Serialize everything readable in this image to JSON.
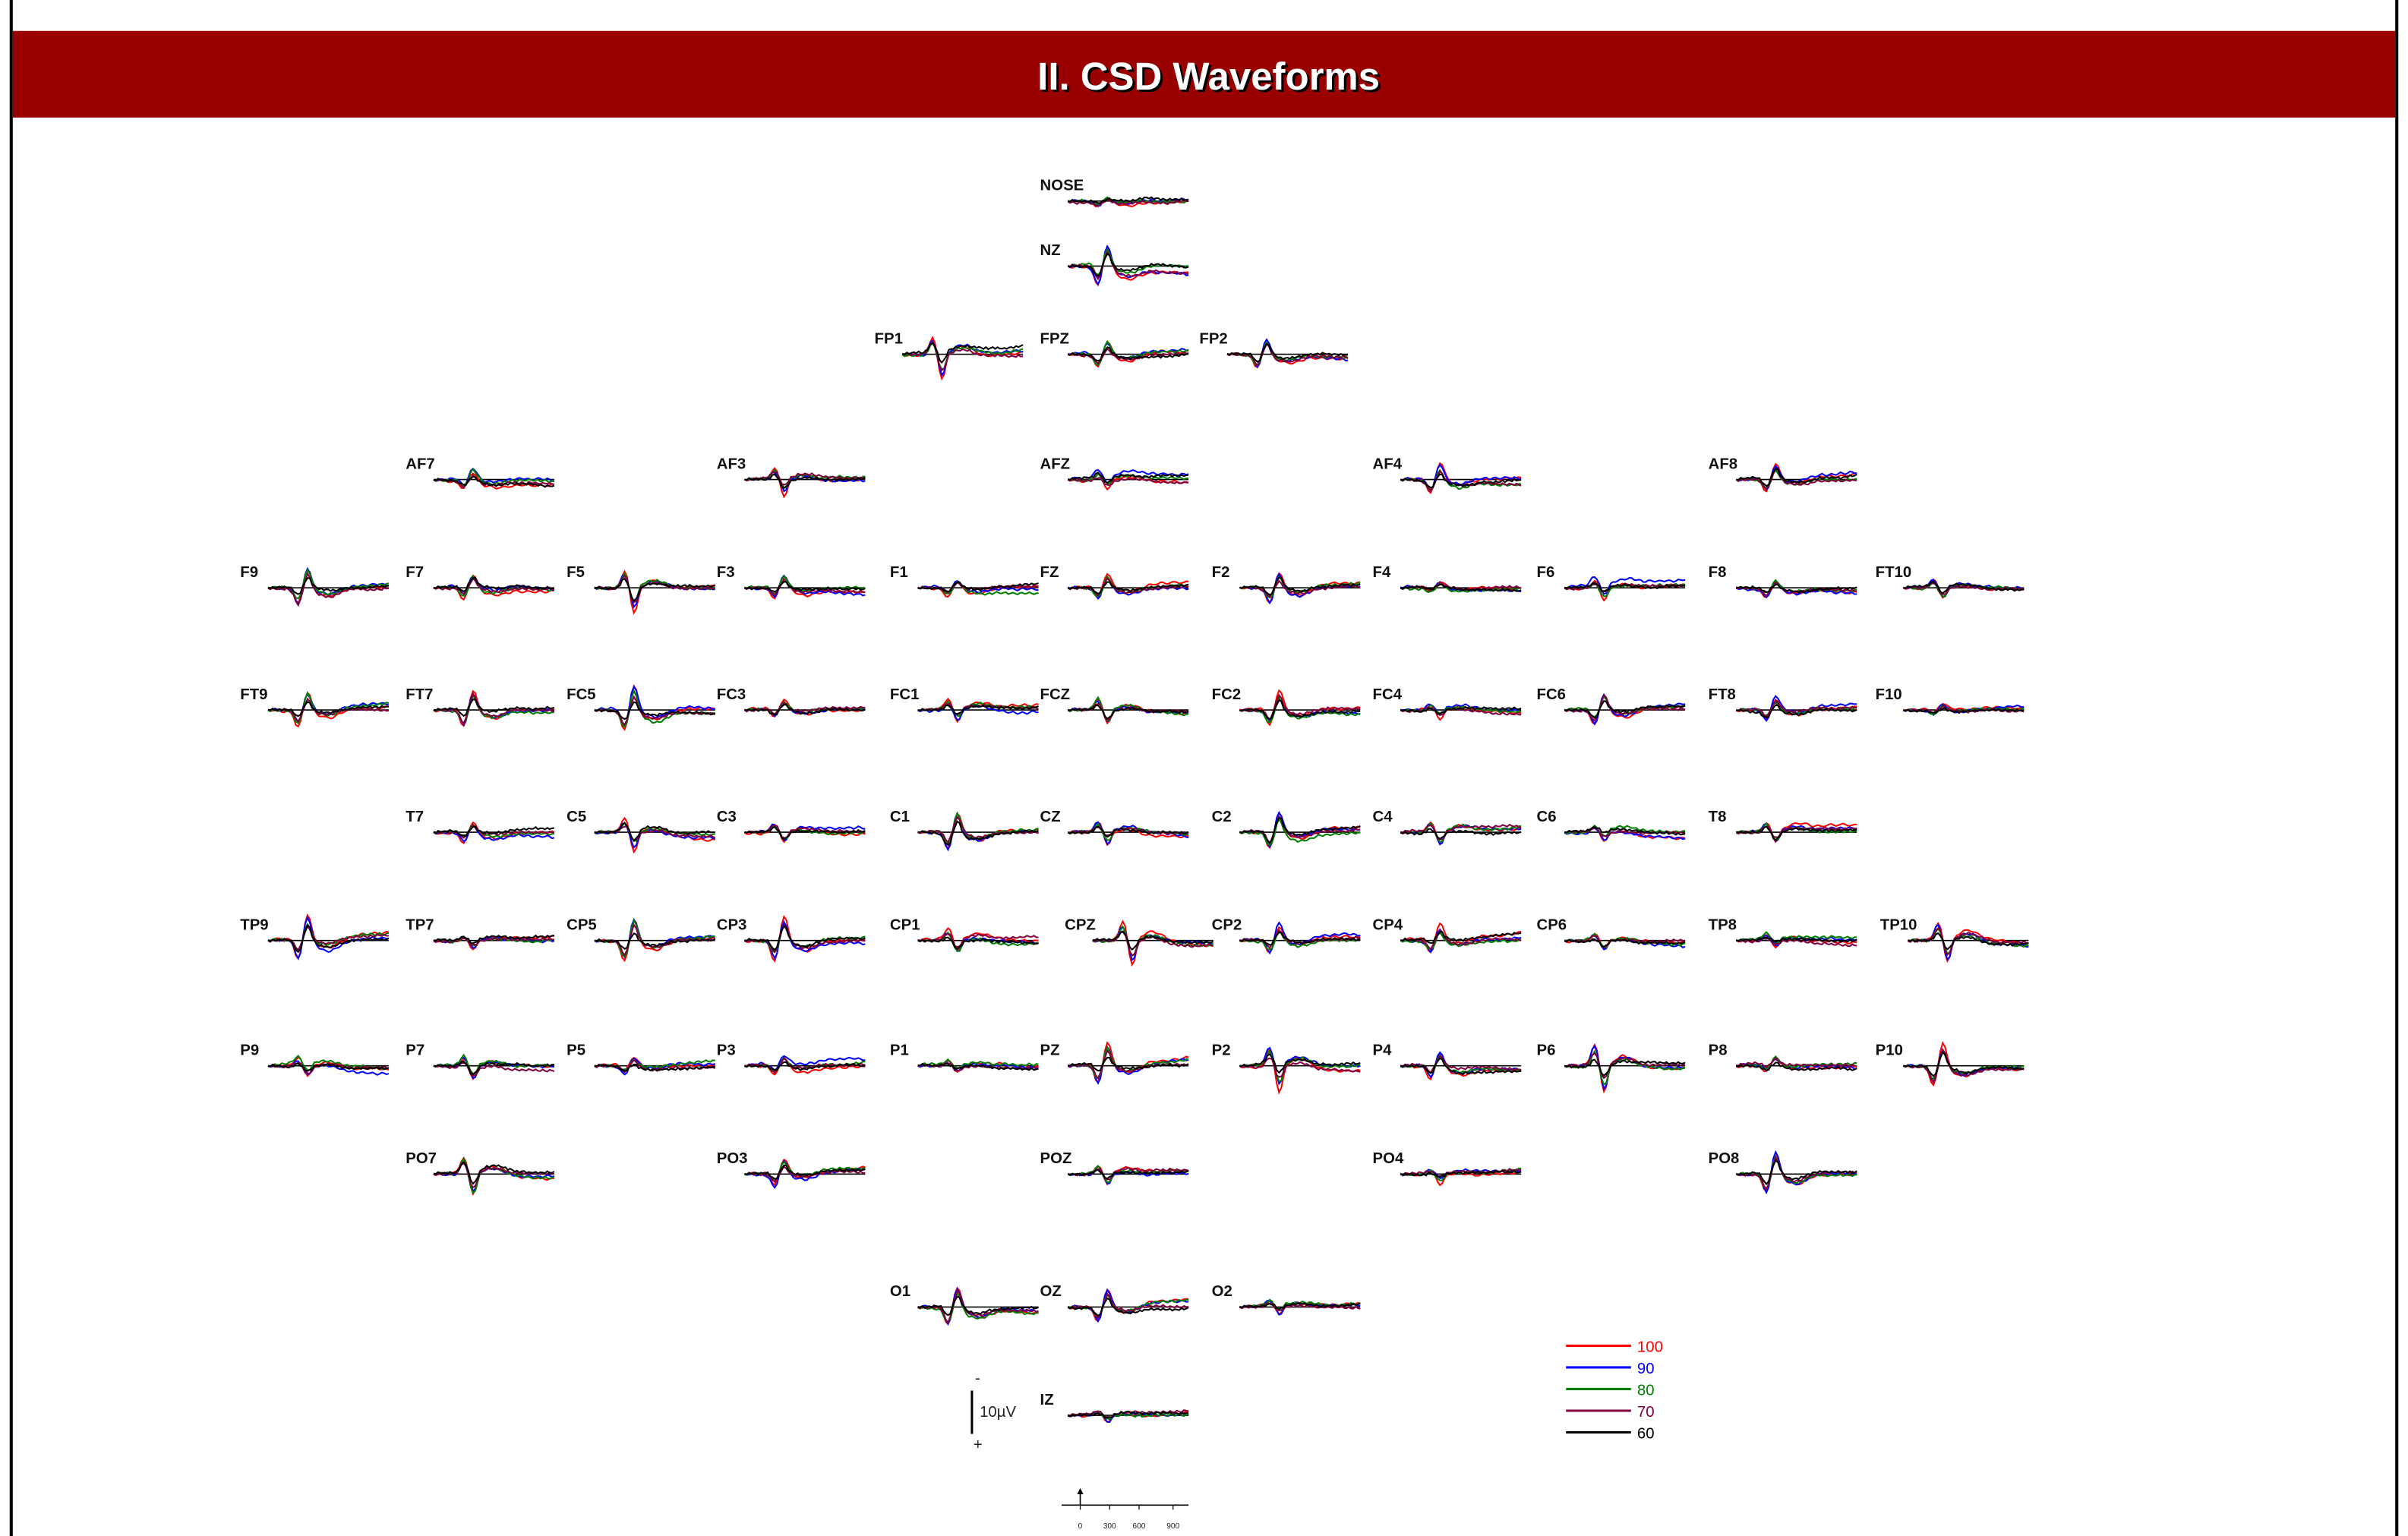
{
  "header": {
    "title": "II. CSD Waveforms"
  },
  "electrodes": [
    "NOSE",
    "NZ",
    "FP1",
    "FPZ",
    "FP2",
    "AF7",
    "AF3",
    "AFZ",
    "AF4",
    "AF8",
    "F9",
    "F7",
    "F5",
    "F3",
    "F1",
    "FZ",
    "F2",
    "F4",
    "F6",
    "F8",
    "FT10",
    "FT9",
    "FT7",
    "FC5",
    "FC3",
    "FC1",
    "FCZ",
    "FC2",
    "FC4",
    "FC6",
    "FT8",
    "F10",
    "T7",
    "C5",
    "C3",
    "C1",
    "CZ",
    "C2",
    "C4",
    "C6",
    "T8",
    "TP9",
    "TP7",
    "CP5",
    "CP3",
    "CP1",
    "CPZ",
    "CP2",
    "CP4",
    "CP6",
    "TP8",
    "TP10",
    "P9",
    "P7",
    "P5",
    "P3",
    "P1",
    "PZ",
    "P2",
    "P4",
    "P6",
    "P8",
    "P10",
    "PO7",
    "PO3",
    "POZ",
    "PO4",
    "PO8",
    "O1",
    "OZ",
    "O2",
    "IZ"
  ],
  "legend": {
    "items": [
      {
        "label": "100",
        "color": "#ff0000"
      },
      {
        "label": "90",
        "color": "#0000ff"
      },
      {
        "label": "80",
        "color": "#008000"
      },
      {
        "label": "70",
        "color": "#800040"
      },
      {
        "label": "60",
        "color": "#000000"
      }
    ]
  },
  "scale": {
    "minus": "-",
    "label": "10µV",
    "plus": "+"
  },
  "time_axis": {
    "ticks": [
      "0",
      "300",
      "600",
      "900"
    ]
  }
}
